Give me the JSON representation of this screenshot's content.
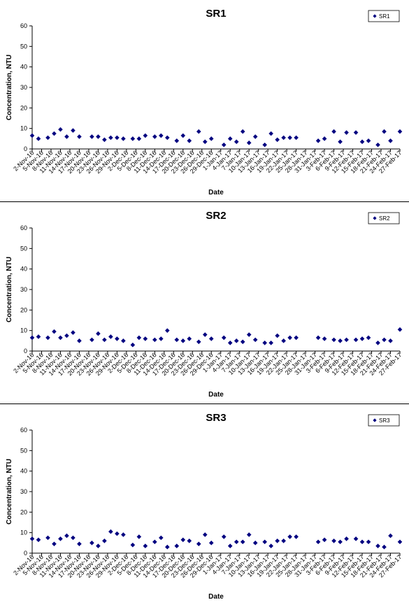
{
  "chart_data": [
    {
      "type": "scatter",
      "title": "SR1",
      "xlabel": "Date",
      "ylabel": "Concentration, NTU",
      "ylim": [
        0,
        60
      ],
      "yticks": [
        0,
        10,
        20,
        30,
        40,
        50,
        60
      ],
      "xlim": [
        "2-Nov-16",
        "27-Feb-17"
      ],
      "x_tick_labels": [
        "2-Nov-16",
        "5-Nov-16",
        "8-Nov-16",
        "11-Nov-16",
        "14-Nov-16",
        "17-Nov-16",
        "20-Nov-16",
        "23-Nov-16",
        "26-Nov-16",
        "29-Nov-16",
        "2-Dec-16",
        "5-Dec-16",
        "8-Dec-16",
        "11-Dec-16",
        "14-Dec-16",
        "17-Dec-16",
        "20-Dec-16",
        "23-Dec-16",
        "26-Dec-16",
        "29-Dec-16",
        "1-Jan-17",
        "4-Jan-17",
        "7-Jan-17",
        "10-Jan-17",
        "13-Jan-17",
        "16-Jan-17",
        "19-Jan-17",
        "22-Jan-17",
        "25-Jan-17",
        "28-Jan-17",
        "31-Jan-17",
        "3-Feb-17",
        "6-Feb-17",
        "9-Feb-17",
        "12-Feb-17",
        "15-Feb-17",
        "18-Feb-17",
        "21-Feb-17",
        "24-Feb-17",
        "27-Feb-17"
      ],
      "grid": false,
      "legend": "top-right",
      "marker": "diamond",
      "color": "#000080",
      "series": [
        {
          "name": "SR1",
          "x": [
            "2-Nov-16",
            "4-Nov-16",
            "7-Nov-16",
            "9-Nov-16",
            "11-Nov-16",
            "13-Nov-16",
            "15-Nov-16",
            "17-Nov-16",
            "21-Nov-16",
            "23-Nov-16",
            "25-Nov-16",
            "27-Nov-16",
            "29-Nov-16",
            "1-Dec-16",
            "4-Dec-16",
            "6-Dec-16",
            "8-Dec-16",
            "11-Dec-16",
            "13-Dec-16",
            "15-Dec-16",
            "18-Dec-16",
            "20-Dec-16",
            "22-Dec-16",
            "25-Dec-16",
            "27-Dec-16",
            "29-Dec-16",
            "2-Jan-17",
            "4-Jan-17",
            "6-Jan-17",
            "8-Jan-17",
            "10-Jan-17",
            "12-Jan-17",
            "15-Jan-17",
            "17-Jan-17",
            "19-Jan-17",
            "21-Jan-17",
            "23-Jan-17",
            "25-Jan-17",
            "1-Feb-17",
            "3-Feb-17",
            "6-Feb-17",
            "8-Feb-17",
            "10-Feb-17",
            "13-Feb-17",
            "15-Feb-17",
            "17-Feb-17",
            "20-Feb-17",
            "22-Feb-17",
            "24-Feb-17",
            "27-Feb-17"
          ],
          "y": [
            6.5,
            5,
            5.5,
            7.5,
            9.5,
            6,
            9,
            6,
            6,
            6,
            4.5,
            5.5,
            5.5,
            5,
            5,
            5,
            6.5,
            6,
            6.5,
            5.5,
            4,
            6.5,
            4,
            8.5,
            3.5,
            5,
            2,
            5,
            3.5,
            8.5,
            3,
            6,
            2,
            7.5,
            4.5,
            5.5,
            5.5,
            5.5,
            4,
            5,
            8.5,
            3.5,
            8,
            8,
            3.5,
            4,
            2,
            8.5,
            4,
            8.5
          ]
        }
      ]
    },
    {
      "type": "scatter",
      "title": "SR2",
      "xlabel": "Date",
      "ylabel": "Concentration, NTU",
      "ylim": [
        0,
        60
      ],
      "yticks": [
        0,
        10,
        20,
        30,
        40,
        50,
        60
      ],
      "xlim": [
        "2-Nov-16",
        "27-Feb-17"
      ],
      "x_tick_labels": [
        "2-Nov-16",
        "5-Nov-16",
        "8-Nov-16",
        "11-Nov-16",
        "14-Nov-16",
        "17-Nov-16",
        "20-Nov-16",
        "23-Nov-16",
        "26-Nov-16",
        "29-Nov-16",
        "2-Dec-16",
        "5-Dec-16",
        "8-Dec-16",
        "11-Dec-16",
        "14-Dec-16",
        "17-Dec-16",
        "20-Dec-16",
        "23-Dec-16",
        "26-Dec-16",
        "29-Dec-16",
        "1-Jan-17",
        "4-Jan-17",
        "7-Jan-17",
        "10-Jan-17",
        "13-Jan-17",
        "16-Jan-17",
        "19-Jan-17",
        "22-Jan-17",
        "25-Jan-17",
        "28-Jan-17",
        "31-Jan-17",
        "3-Feb-17",
        "6-Feb-17",
        "9-Feb-17",
        "12-Feb-17",
        "15-Feb-17",
        "18-Feb-17",
        "21-Feb-17",
        "24-Feb-17",
        "27-Feb-17"
      ],
      "grid": false,
      "legend": "top-right",
      "marker": "diamond",
      "color": "#000080",
      "series": [
        {
          "name": "SR2",
          "x": [
            "2-Nov-16",
            "4-Nov-16",
            "7-Nov-16",
            "9-Nov-16",
            "11-Nov-16",
            "13-Nov-16",
            "15-Nov-16",
            "17-Nov-16",
            "21-Nov-16",
            "23-Nov-16",
            "25-Nov-16",
            "27-Nov-16",
            "29-Nov-16",
            "1-Dec-16",
            "4-Dec-16",
            "6-Dec-16",
            "8-Dec-16",
            "11-Dec-16",
            "13-Dec-16",
            "15-Dec-16",
            "18-Dec-16",
            "20-Dec-16",
            "22-Dec-16",
            "25-Dec-16",
            "27-Dec-16",
            "29-Dec-16",
            "2-Jan-17",
            "4-Jan-17",
            "6-Jan-17",
            "8-Jan-17",
            "10-Jan-17",
            "12-Jan-17",
            "15-Jan-17",
            "17-Jan-17",
            "19-Jan-17",
            "21-Jan-17",
            "23-Jan-17",
            "25-Jan-17",
            "1-Feb-17",
            "3-Feb-17",
            "6-Feb-17",
            "8-Feb-17",
            "10-Feb-17",
            "13-Feb-17",
            "15-Feb-17",
            "17-Feb-17",
            "20-Feb-17",
            "22-Feb-17",
            "24-Feb-17",
            "27-Feb-17"
          ],
          "y": [
            6.5,
            7,
            6.5,
            9.5,
            6.5,
            7.5,
            9,
            5,
            5.5,
            8.5,
            5.5,
            7,
            6,
            5,
            3,
            6.5,
            6,
            5.5,
            6,
            10,
            5.5,
            5,
            6,
            4.5,
            8,
            6,
            6.5,
            4,
            5,
            4.5,
            8,
            5.5,
            4,
            4,
            7.5,
            5,
            6.5,
            6.5,
            6.5,
            6,
            5.5,
            5,
            5.5,
            5.5,
            6,
            6.5,
            4,
            5.5,
            5,
            10.5
          ]
        }
      ]
    },
    {
      "type": "scatter",
      "title": "SR3",
      "xlabel": "Date",
      "ylabel": "Concentration, NTU",
      "ylim": [
        0,
        60
      ],
      "yticks": [
        0,
        10,
        20,
        30,
        40,
        50,
        60
      ],
      "xlim": [
        "2-Nov-16",
        "27-Feb-17"
      ],
      "x_tick_labels": [
        "2-Nov-16",
        "5-Nov-16",
        "8-Nov-16",
        "11-Nov-16",
        "14-Nov-16",
        "17-Nov-16",
        "20-Nov-16",
        "23-Nov-16",
        "26-Nov-16",
        "29-Nov-16",
        "2-Dec-16",
        "5-Dec-16",
        "8-Dec-16",
        "11-Dec-16",
        "14-Dec-16",
        "17-Dec-16",
        "20-Dec-16",
        "23-Dec-16",
        "26-Dec-16",
        "29-Dec-16",
        "1-Jan-17",
        "4-Jan-17",
        "7-Jan-17",
        "10-Jan-17",
        "13-Jan-17",
        "16-Jan-17",
        "19-Jan-17",
        "22-Jan-17",
        "25-Jan-17",
        "28-Jan-17",
        "31-Jan-17",
        "3-Feb-17",
        "6-Feb-17",
        "9-Feb-17",
        "12-Feb-17",
        "15-Feb-17",
        "18-Feb-17",
        "21-Feb-17",
        "24-Feb-17",
        "27-Feb-17"
      ],
      "grid": false,
      "legend": "top-right",
      "marker": "diamond",
      "color": "#000080",
      "series": [
        {
          "name": "SR3",
          "x": [
            "2-Nov-16",
            "4-Nov-16",
            "7-Nov-16",
            "9-Nov-16",
            "11-Nov-16",
            "13-Nov-16",
            "15-Nov-16",
            "17-Nov-16",
            "21-Nov-16",
            "23-Nov-16",
            "25-Nov-16",
            "27-Nov-16",
            "29-Nov-16",
            "1-Dec-16",
            "4-Dec-16",
            "6-Dec-16",
            "8-Dec-16",
            "11-Dec-16",
            "13-Dec-16",
            "15-Dec-16",
            "18-Dec-16",
            "20-Dec-16",
            "22-Dec-16",
            "25-Dec-16",
            "27-Dec-16",
            "29-Dec-16",
            "2-Jan-17",
            "4-Jan-17",
            "6-Jan-17",
            "8-Jan-17",
            "10-Jan-17",
            "12-Jan-17",
            "15-Jan-17",
            "17-Jan-17",
            "19-Jan-17",
            "21-Jan-17",
            "23-Jan-17",
            "25-Jan-17",
            "1-Feb-17",
            "3-Feb-17",
            "6-Feb-17",
            "8-Feb-17",
            "10-Feb-17",
            "13-Feb-17",
            "15-Feb-17",
            "17-Feb-17",
            "20-Feb-17",
            "22-Feb-17",
            "24-Feb-17",
            "27-Feb-17"
          ],
          "y": [
            7,
            6.5,
            7.5,
            4.5,
            7,
            8.5,
            7.5,
            4.5,
            5,
            3.5,
            6,
            10.5,
            9.5,
            9,
            4,
            8,
            3.5,
            5.5,
            7.5,
            3,
            3.5,
            6.5,
            6,
            4.5,
            9,
            5,
            8,
            3.5,
            5.5,
            5.5,
            9,
            5,
            5.5,
            3.5,
            6,
            6,
            8,
            8,
            5.5,
            6.5,
            6,
            5.5,
            7,
            7,
            5.5,
            5.5,
            3.5,
            3,
            8.5,
            5.5
          ]
        }
      ]
    }
  ]
}
